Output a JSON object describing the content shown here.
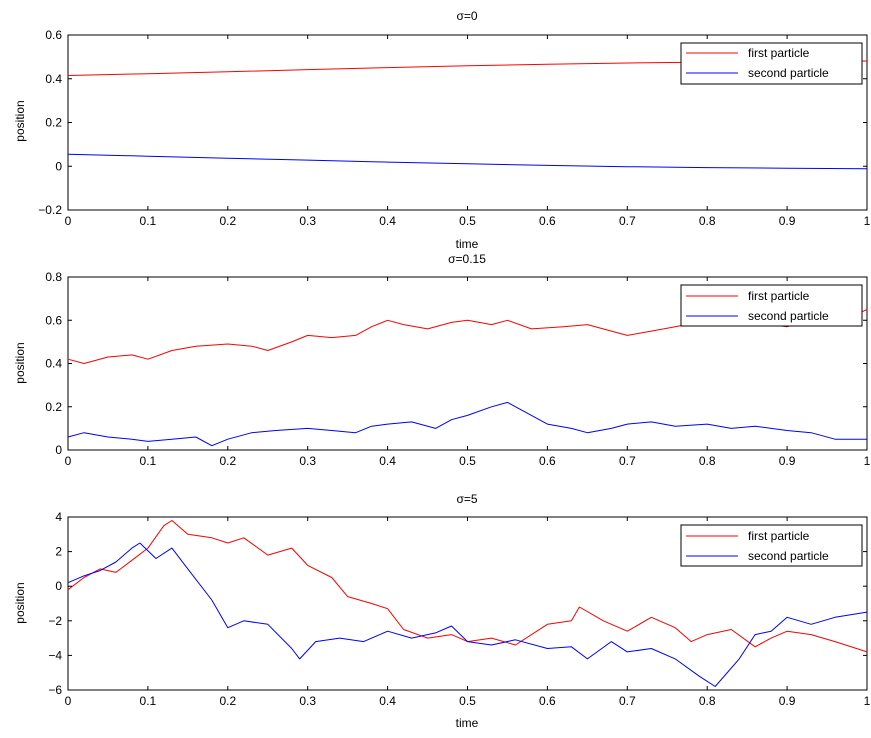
{
  "chart_data": [
    {
      "type": "line",
      "title": "σ=0",
      "xlabel": "time",
      "ylabel": "position",
      "xlim": [
        0,
        1
      ],
      "ylim": [
        -0.2,
        0.6
      ],
      "xticks": [
        0,
        0.1,
        0.2,
        0.3,
        0.4,
        0.5,
        0.6,
        0.7,
        0.8,
        0.9,
        1
      ],
      "xtick_labels": [
        "0",
        "0.1",
        "0.2",
        "0.3",
        "0.4",
        "0.5",
        "0.6",
        "0.7",
        "0.8",
        "0.9",
        "1"
      ],
      "yticks": [
        -0.2,
        0,
        0.2,
        0.4,
        0.6
      ],
      "ytick_labels": [
        "−0.2",
        "0",
        "0.2",
        "0.4",
        "0.6"
      ],
      "grid": false,
      "legend_position": "top-right",
      "series": [
        {
          "name": "first particle",
          "color": "#ff0000",
          "x": [
            0,
            0.1,
            0.2,
            0.3,
            0.4,
            0.5,
            0.6,
            0.7,
            0.8,
            0.9,
            1
          ],
          "y": [
            0.415,
            0.423,
            0.432,
            0.442,
            0.451,
            0.459,
            0.466,
            0.472,
            0.476,
            0.479,
            0.481
          ]
        },
        {
          "name": "second particle",
          "color": "#0000ff",
          "x": [
            0,
            0.1,
            0.2,
            0.3,
            0.4,
            0.5,
            0.6,
            0.7,
            0.8,
            0.9,
            1
          ],
          "y": [
            0.055,
            0.046,
            0.037,
            0.028,
            0.019,
            0.011,
            0.004,
            -0.002,
            -0.006,
            -0.009,
            -0.011
          ]
        }
      ]
    },
    {
      "type": "line",
      "title": "σ=0.15",
      "xlabel": "",
      "ylabel": "position",
      "xlim": [
        0,
        1
      ],
      "ylim": [
        0,
        0.8
      ],
      "xticks": [
        0,
        0.1,
        0.2,
        0.3,
        0.4,
        0.5,
        0.6,
        0.7,
        0.8,
        0.9,
        1
      ],
      "xtick_labels": [
        "0",
        "0.1",
        "0.2",
        "0.3",
        "0.4",
        "0.5",
        "0.6",
        "0.7",
        "0.8",
        "0.9",
        "1"
      ],
      "yticks": [
        0,
        0.2,
        0.4,
        0.6,
        0.8
      ],
      "ytick_labels": [
        "0",
        "0.2",
        "0.4",
        "0.6",
        "0.8"
      ],
      "grid": false,
      "legend_position": "top-right",
      "series": [
        {
          "name": "first particle",
          "color": "#ff0000",
          "x": [
            0,
            0.02,
            0.05,
            0.08,
            0.1,
            0.13,
            0.16,
            0.2,
            0.23,
            0.25,
            0.28,
            0.3,
            0.33,
            0.36,
            0.38,
            0.4,
            0.42,
            0.45,
            0.48,
            0.5,
            0.53,
            0.55,
            0.58,
            0.62,
            0.65,
            0.68,
            0.7,
            0.73,
            0.76,
            0.8,
            0.83,
            0.86,
            0.9,
            0.93,
            0.96,
            1
          ],
          "y": [
            0.42,
            0.4,
            0.43,
            0.44,
            0.42,
            0.46,
            0.48,
            0.49,
            0.48,
            0.46,
            0.5,
            0.53,
            0.52,
            0.53,
            0.57,
            0.6,
            0.58,
            0.56,
            0.59,
            0.6,
            0.58,
            0.6,
            0.56,
            0.57,
            0.58,
            0.55,
            0.53,
            0.55,
            0.57,
            0.6,
            0.61,
            0.59,
            0.57,
            0.6,
            0.58,
            0.65
          ]
        },
        {
          "name": "second particle",
          "color": "#0000ff",
          "x": [
            0,
            0.02,
            0.05,
            0.08,
            0.1,
            0.13,
            0.16,
            0.18,
            0.2,
            0.23,
            0.26,
            0.3,
            0.33,
            0.36,
            0.38,
            0.4,
            0.43,
            0.46,
            0.48,
            0.5,
            0.53,
            0.55,
            0.57,
            0.6,
            0.63,
            0.65,
            0.68,
            0.7,
            0.73,
            0.76,
            0.8,
            0.83,
            0.86,
            0.9,
            0.93,
            0.96,
            1
          ],
          "y": [
            0.06,
            0.08,
            0.06,
            0.05,
            0.04,
            0.05,
            0.06,
            0.02,
            0.05,
            0.08,
            0.09,
            0.1,
            0.09,
            0.08,
            0.11,
            0.12,
            0.13,
            0.1,
            0.14,
            0.16,
            0.2,
            0.22,
            0.18,
            0.12,
            0.1,
            0.08,
            0.1,
            0.12,
            0.13,
            0.11,
            0.12,
            0.1,
            0.11,
            0.09,
            0.08,
            0.05,
            0.05
          ]
        }
      ]
    },
    {
      "type": "line",
      "title": "σ=5",
      "xlabel": "time",
      "ylabel": "position",
      "xlim": [
        0,
        1
      ],
      "ylim": [
        -6,
        4
      ],
      "xticks": [
        0,
        0.1,
        0.2,
        0.3,
        0.4,
        0.5,
        0.6,
        0.7,
        0.8,
        0.9,
        1
      ],
      "xtick_labels": [
        "0",
        "0.1",
        "0.2",
        "0.3",
        "0.4",
        "0.5",
        "0.6",
        "0.7",
        "0.8",
        "0.9",
        "1"
      ],
      "yticks": [
        -6,
        -4,
        -2,
        0,
        2,
        4
      ],
      "ytick_labels": [
        "−6",
        "−4",
        "−2",
        "0",
        "2",
        "4"
      ],
      "grid": false,
      "legend_position": "top-right",
      "series": [
        {
          "name": "first particle",
          "color": "#ff0000",
          "x": [
            0,
            0.02,
            0.04,
            0.06,
            0.08,
            0.1,
            0.12,
            0.13,
            0.15,
            0.18,
            0.2,
            0.22,
            0.25,
            0.28,
            0.3,
            0.33,
            0.35,
            0.38,
            0.4,
            0.42,
            0.45,
            0.48,
            0.5,
            0.53,
            0.56,
            0.6,
            0.63,
            0.64,
            0.67,
            0.7,
            0.73,
            0.76,
            0.78,
            0.8,
            0.83,
            0.86,
            0.88,
            0.9,
            0.93,
            0.96,
            1
          ],
          "y": [
            -0.2,
            0.5,
            1.0,
            0.8,
            1.5,
            2.2,
            3.5,
            3.8,
            3.0,
            2.8,
            2.5,
            2.8,
            1.8,
            2.2,
            1.2,
            0.5,
            -0.6,
            -1.0,
            -1.3,
            -2.5,
            -3.0,
            -2.8,
            -3.2,
            -3.0,
            -3.4,
            -2.2,
            -2.0,
            -1.2,
            -2.0,
            -2.6,
            -1.8,
            -2.4,
            -3.2,
            -2.8,
            -2.5,
            -3.5,
            -3.0,
            -2.6,
            -2.8,
            -3.2,
            -3.8
          ]
        },
        {
          "name": "second particle",
          "color": "#0000ff",
          "x": [
            0,
            0.02,
            0.04,
            0.06,
            0.08,
            0.09,
            0.11,
            0.13,
            0.15,
            0.18,
            0.2,
            0.22,
            0.25,
            0.28,
            0.29,
            0.31,
            0.34,
            0.37,
            0.4,
            0.43,
            0.46,
            0.48,
            0.5,
            0.53,
            0.56,
            0.6,
            0.63,
            0.65,
            0.68,
            0.7,
            0.73,
            0.76,
            0.79,
            0.81,
            0.84,
            0.86,
            0.88,
            0.9,
            0.93,
            0.96,
            1
          ],
          "y": [
            0.2,
            0.6,
            0.9,
            1.4,
            2.2,
            2.5,
            1.6,
            2.2,
            1.0,
            -0.8,
            -2.4,
            -2.0,
            -2.2,
            -3.6,
            -4.2,
            -3.2,
            -3.0,
            -3.2,
            -2.6,
            -3.0,
            -2.7,
            -2.3,
            -3.2,
            -3.4,
            -3.1,
            -3.6,
            -3.5,
            -4.2,
            -3.2,
            -3.8,
            -3.6,
            -4.2,
            -5.2,
            -5.8,
            -4.2,
            -2.8,
            -2.6,
            -1.8,
            -2.2,
            -1.8,
            -1.5
          ]
        }
      ]
    }
  ]
}
